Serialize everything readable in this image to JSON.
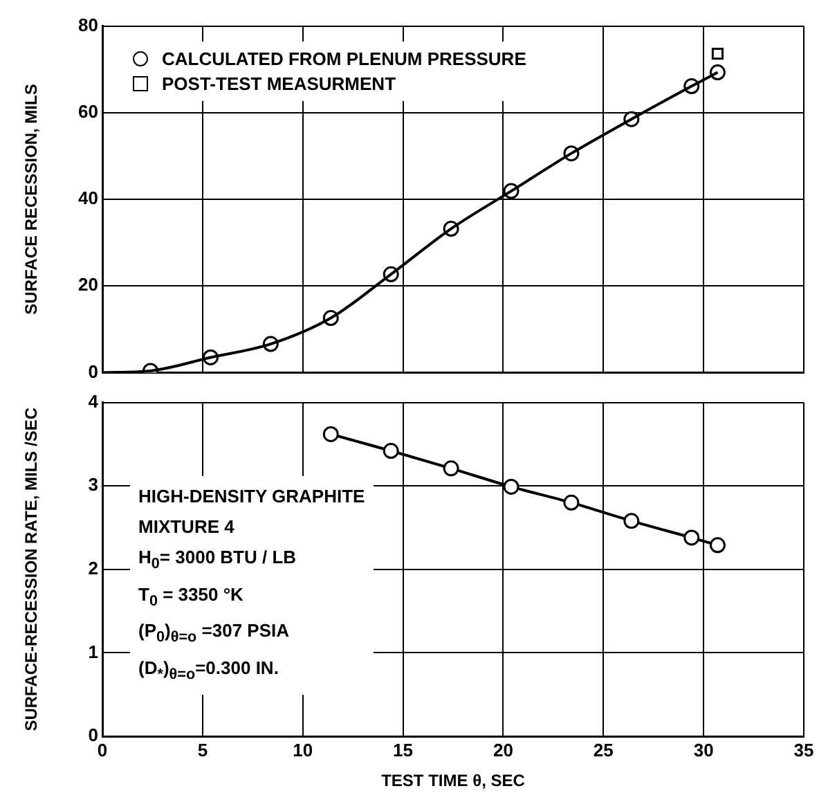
{
  "chart_data": [
    {
      "type": "scatter",
      "ylabel": "SURFACE RECESSION, MILS",
      "xlim": [
        0,
        35
      ],
      "xticks": [
        0,
        5,
        10,
        15,
        20,
        25,
        30,
        35
      ],
      "ylim": [
        0,
        80
      ],
      "yticks": [
        0,
        20,
        40,
        60,
        80
      ],
      "tick_labels": "y",
      "grid": true,
      "legend": "top left",
      "series": [
        {
          "type": "line",
          "marker": "none",
          "color": "#000000",
          "x": [
            0,
            2.4,
            5.4,
            8.4,
            11.4,
            14.4,
            17.4,
            20.4,
            23.4,
            26.4,
            29.4,
            30.7
          ],
          "values": [
            0,
            0.4,
            3.5,
            6.6,
            12.6,
            22.7,
            33.2,
            41.9,
            50.6,
            58.5,
            66.1,
            69.3
          ]
        },
        {
          "type": "scatter",
          "marker": "circle",
          "name": "CALCULATED FROM PLENUM PRESSURE",
          "color": "#000000",
          "x": [
            2.4,
            5.4,
            8.4,
            11.4,
            14.4,
            17.4,
            20.4,
            23.4,
            26.4,
            29.4,
            30.7
          ],
          "values": [
            0.4,
            3.5,
            6.6,
            12.6,
            22.7,
            33.2,
            41.9,
            50.6,
            58.5,
            66.1,
            69.3
          ]
        },
        {
          "type": "scatter",
          "marker": "square",
          "name": "POST-TEST MEASURMENT",
          "color": "#000000",
          "x": [
            30.7
          ],
          "values": [
            73.6
          ]
        }
      ]
    },
    {
      "type": "line",
      "xlabel": "TEST TIME θ, SEC",
      "ylabel": "SURFACE-RECESSION RATE, MILS /SEC",
      "xlim": [
        0,
        35
      ],
      "xticks": [
        0,
        5,
        10,
        15,
        20,
        25,
        30,
        35
      ],
      "ylim": [
        0,
        4
      ],
      "yticks": [
        0,
        1,
        2,
        3,
        4
      ],
      "grid": true,
      "marker": "circle",
      "annotations": [
        "HIGH-DENSITY GRAPHITE",
        "MIXTURE 4",
        "H$_{0}$= 3000 BTU / LB",
        "T$_{0}$ = 3350 °K",
        "(P$_{0}$)$_{θ=o}$ =307 PSIA",
        "(D$_{*}$)$_{θ=o}$=0.300 IN."
      ],
      "series": [
        {
          "color": "#000000",
          "x": [
            11.4,
            14.4,
            17.4,
            20.4,
            23.4,
            26.4,
            29.4,
            30.7
          ],
          "values": [
            3.62,
            3.42,
            3.21,
            2.99,
            2.8,
            2.58,
            2.38,
            2.29
          ]
        }
      ]
    }
  ]
}
